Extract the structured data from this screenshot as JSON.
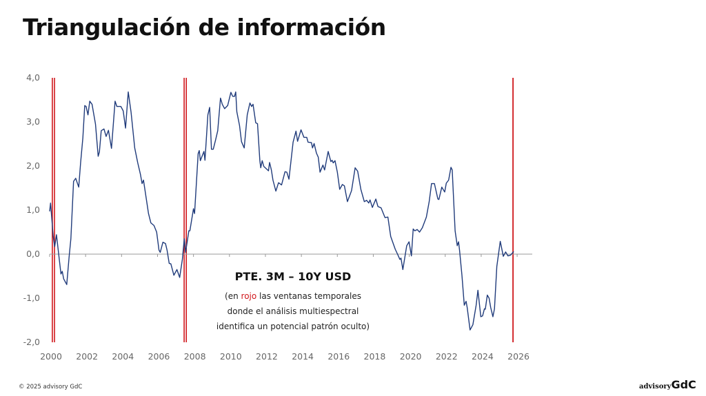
{
  "page": {
    "title": "Triangulación de información",
    "footer": "© 2025 advisory GdC",
    "logo": {
      "prefix": "advisory",
      "brand": "GdC"
    }
  },
  "annotation": {
    "heading": "PTE. 3M – 10Y USD",
    "line1_pre": "(en ",
    "line1_red": "rojo",
    "line1_post": " las ventanas temporales",
    "line2": "donde el análisis multiespectral",
    "line3": "identifica un potencial patrón oculto)"
  },
  "colors": {
    "series": "#1f3a7a",
    "windows": "#d0161b",
    "axis": "#999999"
  },
  "chart_data": {
    "type": "line",
    "title": "PTE. 3M – 10Y USD",
    "xlabel": "",
    "ylabel": "",
    "xlim": [
      2000,
      2026.8
    ],
    "ylim": [
      -2,
      4
    ],
    "xticks": [
      2000,
      2002,
      2004,
      2006,
      2008,
      2010,
      2012,
      2014,
      2016,
      2018,
      2020,
      2022,
      2024,
      2026
    ],
    "yticks": [
      {
        "v": 4,
        "label": "4,0"
      },
      {
        "v": 3,
        "label": "3,0"
      },
      {
        "v": 2,
        "label": "2,0"
      },
      {
        "v": 1,
        "label": "1,0"
      },
      {
        "v": 0,
        "label": "0,0"
      },
      {
        "v": -1,
        "label": "-1,0"
      },
      {
        "v": -2,
        "label": "-2,0"
      }
    ],
    "grid": false,
    "red_windows": [
      [
        2000.15,
        2000.27
      ],
      [
        2007.48,
        2007.6
      ],
      [
        2025.77,
        2025.8
      ]
    ],
    "series": [
      {
        "name": "PTE. 3M – 10Y USD",
        "points": [
          [
            2000.0,
            0.97
          ],
          [
            2000.05,
            1.16
          ],
          [
            2000.2,
            0.4
          ],
          [
            2000.28,
            0.17
          ],
          [
            2000.38,
            0.44
          ],
          [
            2000.63,
            -0.45
          ],
          [
            2000.7,
            -0.39
          ],
          [
            2000.78,
            -0.56
          ],
          [
            2000.95,
            -0.69
          ],
          [
            2001.08,
            -0.07
          ],
          [
            2001.18,
            0.35
          ],
          [
            2001.33,
            1.65
          ],
          [
            2001.45,
            1.72
          ],
          [
            2001.62,
            1.52
          ],
          [
            2001.72,
            2.07
          ],
          [
            2001.85,
            2.64
          ],
          [
            2001.95,
            3.37
          ],
          [
            2002.03,
            3.35
          ],
          [
            2002.13,
            3.16
          ],
          [
            2002.23,
            3.47
          ],
          [
            2002.36,
            3.4
          ],
          [
            2002.55,
            2.95
          ],
          [
            2002.7,
            2.22
          ],
          [
            2002.77,
            2.32
          ],
          [
            2002.87,
            2.8
          ],
          [
            2003.02,
            2.84
          ],
          [
            2003.14,
            2.67
          ],
          [
            2003.27,
            2.81
          ],
          [
            2003.44,
            2.4
          ],
          [
            2003.64,
            3.47
          ],
          [
            2003.74,
            3.35
          ],
          [
            2003.96,
            3.35
          ],
          [
            2004.09,
            3.25
          ],
          [
            2004.22,
            2.86
          ],
          [
            2004.37,
            3.68
          ],
          [
            2004.53,
            3.22
          ],
          [
            2004.73,
            2.41
          ],
          [
            2004.9,
            2.07
          ],
          [
            2005.05,
            1.81
          ],
          [
            2005.14,
            1.6
          ],
          [
            2005.22,
            1.68
          ],
          [
            2005.5,
            0.92
          ],
          [
            2005.63,
            0.71
          ],
          [
            2005.8,
            0.65
          ],
          [
            2005.95,
            0.5
          ],
          [
            2006.08,
            0.09
          ],
          [
            2006.15,
            0.04
          ],
          [
            2006.3,
            0.27
          ],
          [
            2006.44,
            0.24
          ],
          [
            2006.53,
            0.09
          ],
          [
            2006.65,
            -0.21
          ],
          [
            2006.74,
            -0.22
          ],
          [
            2006.91,
            -0.48
          ],
          [
            2007.08,
            -0.35
          ],
          [
            2007.23,
            -0.53
          ],
          [
            2007.38,
            -0.12
          ],
          [
            2007.49,
            0.35
          ],
          [
            2007.56,
            0.04
          ],
          [
            2007.74,
            0.53
          ],
          [
            2007.8,
            0.53
          ],
          [
            2008.0,
            1.03
          ],
          [
            2008.06,
            0.92
          ],
          [
            2008.26,
            2.28
          ],
          [
            2008.32,
            2.35
          ],
          [
            2008.38,
            2.12
          ],
          [
            2008.58,
            2.33
          ],
          [
            2008.64,
            2.13
          ],
          [
            2008.8,
            3.16
          ],
          [
            2008.9,
            3.33
          ],
          [
            2009.0,
            2.38
          ],
          [
            2009.1,
            2.38
          ],
          [
            2009.23,
            2.59
          ],
          [
            2009.35,
            2.8
          ],
          [
            2009.5,
            3.54
          ],
          [
            2009.6,
            3.4
          ],
          [
            2009.73,
            3.3
          ],
          [
            2009.9,
            3.37
          ],
          [
            2010.08,
            3.67
          ],
          [
            2010.18,
            3.58
          ],
          [
            2010.28,
            3.58
          ],
          [
            2010.35,
            3.68
          ],
          [
            2010.41,
            3.23
          ],
          [
            2010.56,
            2.92
          ],
          [
            2010.67,
            2.55
          ],
          [
            2010.82,
            2.41
          ],
          [
            2010.99,
            3.16
          ],
          [
            2011.14,
            3.43
          ],
          [
            2011.23,
            3.35
          ],
          [
            2011.31,
            3.4
          ],
          [
            2011.46,
            2.98
          ],
          [
            2011.56,
            2.96
          ],
          [
            2011.69,
            2.12
          ],
          [
            2011.74,
            1.96
          ],
          [
            2011.82,
            2.12
          ],
          [
            2011.91,
            1.99
          ],
          [
            2012.17,
            1.89
          ],
          [
            2012.23,
            2.08
          ],
          [
            2012.33,
            1.91
          ],
          [
            2012.42,
            1.68
          ],
          [
            2012.58,
            1.43
          ],
          [
            2012.73,
            1.62
          ],
          [
            2012.9,
            1.57
          ],
          [
            2013.09,
            1.87
          ],
          [
            2013.19,
            1.86
          ],
          [
            2013.31,
            1.7
          ],
          [
            2013.54,
            2.54
          ],
          [
            2013.7,
            2.79
          ],
          [
            2013.79,
            2.56
          ],
          [
            2013.98,
            2.82
          ],
          [
            2014.14,
            2.65
          ],
          [
            2014.3,
            2.65
          ],
          [
            2014.37,
            2.54
          ],
          [
            2014.56,
            2.53
          ],
          [
            2014.62,
            2.41
          ],
          [
            2014.71,
            2.51
          ],
          [
            2014.84,
            2.29
          ],
          [
            2014.94,
            2.2
          ],
          [
            2015.04,
            1.86
          ],
          [
            2015.2,
            2.02
          ],
          [
            2015.29,
            1.91
          ],
          [
            2015.49,
            2.33
          ],
          [
            2015.64,
            2.1
          ],
          [
            2015.71,
            2.13
          ],
          [
            2015.77,
            2.07
          ],
          [
            2015.87,
            2.12
          ],
          [
            2016.0,
            1.86
          ],
          [
            2016.13,
            1.47
          ],
          [
            2016.28,
            1.58
          ],
          [
            2016.39,
            1.55
          ],
          [
            2016.56,
            1.19
          ],
          [
            2016.79,
            1.44
          ],
          [
            2016.99,
            1.96
          ],
          [
            2017.13,
            1.88
          ],
          [
            2017.31,
            1.47
          ],
          [
            2017.5,
            1.19
          ],
          [
            2017.63,
            1.22
          ],
          [
            2017.75,
            1.16
          ],
          [
            2017.82,
            1.23
          ],
          [
            2017.95,
            1.06
          ],
          [
            2018.14,
            1.25
          ],
          [
            2018.26,
            1.08
          ],
          [
            2018.43,
            1.05
          ],
          [
            2018.65,
            0.83
          ],
          [
            2018.81,
            0.84
          ],
          [
            2018.97,
            0.4
          ],
          [
            2019.22,
            0.11
          ],
          [
            2019.35,
            0.0
          ],
          [
            2019.48,
            -0.12
          ],
          [
            2019.54,
            -0.09
          ],
          [
            2019.645,
            -0.35
          ],
          [
            2019.86,
            0.19
          ],
          [
            2019.99,
            0.28
          ],
          [
            2020.12,
            -0.04
          ],
          [
            2020.22,
            0.57
          ],
          [
            2020.31,
            0.53
          ],
          [
            2020.44,
            0.56
          ],
          [
            2020.57,
            0.5
          ],
          [
            2020.73,
            0.6
          ],
          [
            2020.95,
            0.84
          ],
          [
            2021.11,
            1.19
          ],
          [
            2021.24,
            1.6
          ],
          [
            2021.4,
            1.6
          ],
          [
            2021.59,
            1.25
          ],
          [
            2021.65,
            1.24
          ],
          [
            2021.81,
            1.52
          ],
          [
            2021.97,
            1.41
          ],
          [
            2022.06,
            1.61
          ],
          [
            2022.19,
            1.68
          ],
          [
            2022.32,
            1.97
          ],
          [
            2022.39,
            1.91
          ],
          [
            2022.55,
            0.53
          ],
          [
            2022.67,
            0.19
          ],
          [
            2022.74,
            0.28
          ],
          [
            2022.8,
            0.08
          ],
          [
            2022.93,
            -0.48
          ],
          [
            2023.06,
            -1.16
          ],
          [
            2023.16,
            -1.07
          ],
          [
            2023.22,
            -1.21
          ],
          [
            2023.38,
            -1.72
          ],
          [
            2023.54,
            -1.6
          ],
          [
            2023.72,
            -1.16
          ],
          [
            2023.82,
            -0.82
          ],
          [
            2023.98,
            -1.42
          ],
          [
            2024.08,
            -1.4
          ],
          [
            2024.18,
            -1.24
          ],
          [
            2024.23,
            -1.25
          ],
          [
            2024.34,
            -0.93
          ],
          [
            2024.44,
            -1.0
          ],
          [
            2024.53,
            -1.21
          ],
          [
            2024.65,
            -1.42
          ],
          [
            2024.74,
            -1.24
          ],
          [
            2024.87,
            -0.28
          ],
          [
            2025.06,
            0.29
          ],
          [
            2025.23,
            -0.05
          ],
          [
            2025.36,
            0.05
          ],
          [
            2025.49,
            -0.04
          ],
          [
            2025.64,
            -0.02
          ],
          [
            2025.81,
            0.06
          ]
        ]
      }
    ]
  }
}
